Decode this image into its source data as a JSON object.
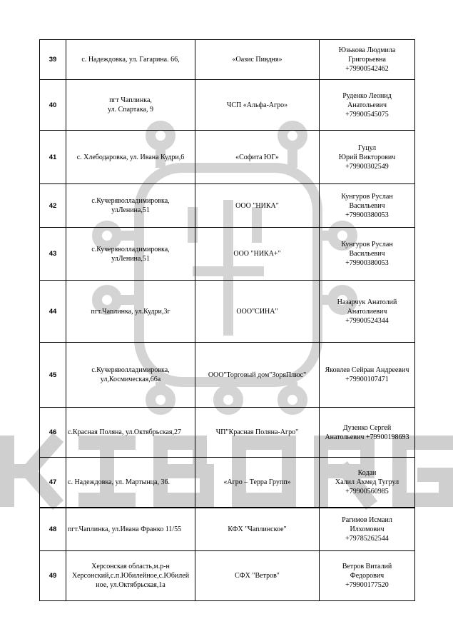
{
  "watermark": {
    "text": "KIBORG",
    "color": "#cfcfcf"
  },
  "rows": [
    {
      "num": "39",
      "address": "с. Надеждовка, ул. Гагарина. 66,",
      "org": "«Оазис Пивдня»",
      "contact": [
        "Юзькова Людмила",
        "Григорьевна",
        "+79900542462"
      ]
    },
    {
      "num": "40",
      "address": "пгт Чаплинка,\nул. Спартака, 9",
      "org": "ЧСП «Альфа-Агро»",
      "contact": [
        "Руденко Леонид",
        "Анатольевич",
        "+79900545075"
      ]
    },
    {
      "num": "41",
      "address": "с. Хлебодаровка, ул. Ивана Кудри,6",
      "org": "«Софита ЮГ»",
      "contact": [
        "Гуцул",
        "Юрий Викторович",
        "+79900302549"
      ]
    },
    {
      "num": "42",
      "address": "с.Кучеряволладимировка,\nулЛенина,51",
      "org": "ООО \"НИКА\"",
      "contact": [
        "Кунгуров Руслан",
        "Васильевич",
        "+79900380053"
      ]
    },
    {
      "num": "43",
      "address": "с.Кучеряволладимировка,\nулЛенина,51",
      "org": "ООО \"НИКА+\"",
      "contact": [
        "Кунгуров Руслан",
        "Васильевич",
        "+79900380053"
      ]
    },
    {
      "num": "44",
      "address": "пгт.Чаплинка, ул.Кудри,3г",
      "org": "ООО\"СИНА\"",
      "contact": [
        "Назарчук Анатолий",
        "Анатолиевич",
        "+79900524344"
      ]
    },
    {
      "num": "45",
      "address": "с.Кучеряволладимировка,\nул,Космическая,66а",
      "org": "ООО\"Торговый дом\"ЗоряПлюс\"",
      "contact": [
        "Яковлев Сейран Андреевич",
        "+79900107471"
      ]
    },
    {
      "num": "46",
      "address": "с.Красная Поляна, ул.Октябрьская,27",
      "org": "ЧП\"Красная Поляна-Агро\"",
      "contact": [
        "Дузенко Сергей",
        "Анатольевич +79900198693"
      ]
    },
    {
      "num": "47",
      "address": "с. Надеждовка, ул. Мартынца, 36.",
      "org": "«Агро – Терра Групп»",
      "contact": [
        "Кодан",
        "Халил Ахмед Тугрул",
        "+79900560985"
      ]
    },
    {
      "num": "48",
      "address": "пгт.Чаплинка, ул.Ивана Франко 11/55",
      "org": "КФХ \"Чаплинское\"",
      "contact": [
        "Рагимов Исмаил",
        "Илхомович",
        "+79785262544"
      ]
    },
    {
      "num": "49",
      "address": "Херсонская область,м.р-н\nХерсонский,с.п.Юбилейное,с.Юбилей\nное, ул.Октябрьская,1а",
      "org": "СФХ \"Ветров\"",
      "contact": [
        "Ветров Виталий",
        "Федорович",
        "+79900177520"
      ]
    }
  ]
}
